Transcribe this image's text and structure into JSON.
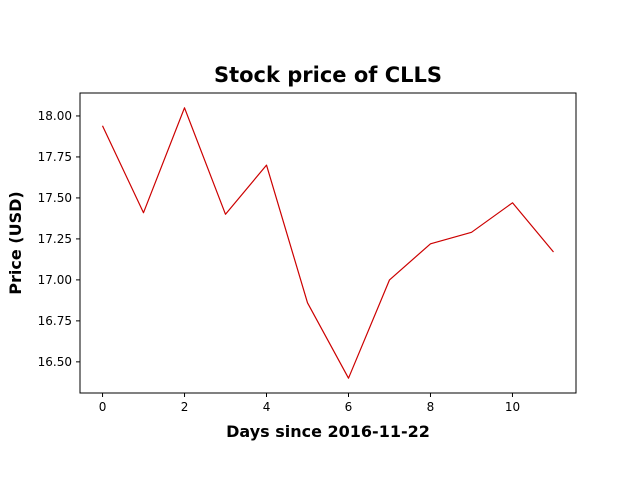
{
  "chart_data": {
    "type": "line",
    "title": "Stock price of CLLS",
    "xlabel": "Days since 2016-11-22",
    "ylabel": "Price (USD)",
    "x": [
      0,
      1,
      2,
      3,
      4,
      5,
      6,
      7,
      8,
      9,
      10,
      11
    ],
    "series": [
      {
        "values": [
          17.94,
          17.41,
          18.05,
          17.4,
          17.7,
          16.86,
          16.4,
          17.0,
          17.22,
          17.29,
          17.47,
          17.17
        ],
        "color": "#cc0000"
      }
    ],
    "xlim": [
      -0.55,
      11.55
    ],
    "ylim": [
      16.31,
      18.14
    ],
    "xticks": [
      0,
      2,
      4,
      6,
      8,
      10
    ],
    "yticks": [
      16.5,
      16.75,
      17.0,
      17.25,
      17.5,
      17.75,
      18.0
    ],
    "grid": false,
    "legend": "none"
  }
}
